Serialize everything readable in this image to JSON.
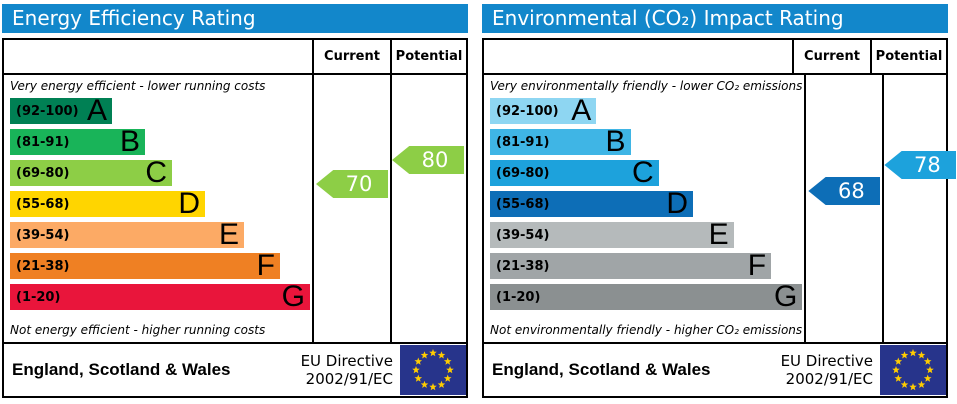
{
  "colors": {
    "title_bar": "#1287cb",
    "eu_flag_blue": "#27348b",
    "eu_star_yellow": "#ffcc00",
    "arrow_text": "#ffffff"
  },
  "chart_data": [
    {
      "type": "bar",
      "title": "Energy Efficiency Rating",
      "top_note": "Very energy efficient - lower running costs",
      "bottom_note": "Not energy efficient - higher running costs",
      "columns": {
        "current": "Current",
        "potential": "Potential"
      },
      "categories": [
        "A (92-100)",
        "B (81-91)",
        "C (69-80)",
        "D (55-68)",
        "E (39-54)",
        "F (21-38)",
        "G (1-20)"
      ],
      "values": [
        34,
        45,
        54,
        65,
        78,
        90,
        100
      ],
      "bands": [
        {
          "letter": "A",
          "range": "(92-100)",
          "min": 92,
          "max": 100,
          "color": "#008054",
          "width_pct": 34
        },
        {
          "letter": "B",
          "range": "(81-91)",
          "min": 81,
          "max": 91,
          "color": "#19b459",
          "width_pct": 45
        },
        {
          "letter": "C",
          "range": "(69-80)",
          "min": 69,
          "max": 80,
          "color": "#8dce46",
          "width_pct": 54
        },
        {
          "letter": "D",
          "range": "(55-68)",
          "min": 55,
          "max": 68,
          "color": "#ffd500",
          "width_pct": 65
        },
        {
          "letter": "E",
          "range": "(39-54)",
          "min": 39,
          "max": 54,
          "color": "#fcaa65",
          "width_pct": 78
        },
        {
          "letter": "F",
          "range": "(21-38)",
          "min": 21,
          "max": 38,
          "color": "#ef8023",
          "width_pct": 90
        },
        {
          "letter": "G",
          "range": "(1-20)",
          "min": 1,
          "max": 20,
          "color": "#e9153b",
          "width_pct": 100
        }
      ],
      "current": {
        "value": 70,
        "color": "#8dce46"
      },
      "potential": {
        "value": 80,
        "color": "#8dce46"
      },
      "footer": {
        "region": "England, Scotland & Wales",
        "directive": [
          "EU Directive",
          "2002/91/EC"
        ]
      }
    },
    {
      "type": "bar",
      "title": "Environmental (CO₂) Impact Rating",
      "top_note": "Very environmentally friendly - lower CO₂ emissions",
      "bottom_note": "Not environmentally friendly - higher CO₂ emissions",
      "columns": {
        "current": "Current",
        "potential": "Potential"
      },
      "categories": [
        "A (92-100)",
        "B (81-91)",
        "C (69-80)",
        "D (55-68)",
        "E (39-54)",
        "F (21-38)",
        "G (1-20)"
      ],
      "values": [
        34,
        45,
        54,
        65,
        78,
        90,
        100
      ],
      "bands": [
        {
          "letter": "A",
          "range": "(92-100)",
          "min": 92,
          "max": 100,
          "color": "#8ed6f2",
          "width_pct": 34
        },
        {
          "letter": "B",
          "range": "(81-91)",
          "min": 81,
          "max": 91,
          "color": "#3fb5e5",
          "width_pct": 45
        },
        {
          "letter": "C",
          "range": "(69-80)",
          "min": 69,
          "max": 80,
          "color": "#1da2dc",
          "width_pct": 54
        },
        {
          "letter": "D",
          "range": "(55-68)",
          "min": 55,
          "max": 68,
          "color": "#0d6eb7",
          "width_pct": 65
        },
        {
          "letter": "E",
          "range": "(39-54)",
          "min": 39,
          "max": 54,
          "color": "#b5babb",
          "width_pct": 78
        },
        {
          "letter": "F",
          "range": "(21-38)",
          "min": 21,
          "max": 38,
          "color": "#a0a5a7",
          "width_pct": 90
        },
        {
          "letter": "G",
          "range": "(1-20)",
          "min": 1,
          "max": 20,
          "color": "#8b9091",
          "width_pct": 100
        }
      ],
      "current": {
        "value": 68,
        "color": "#0d6eb7"
      },
      "potential": {
        "value": 78,
        "color": "#1da2dc"
      },
      "footer": {
        "region": "England, Scotland & Wales",
        "directive": [
          "EU Directive",
          "2002/91/EC"
        ]
      }
    }
  ]
}
